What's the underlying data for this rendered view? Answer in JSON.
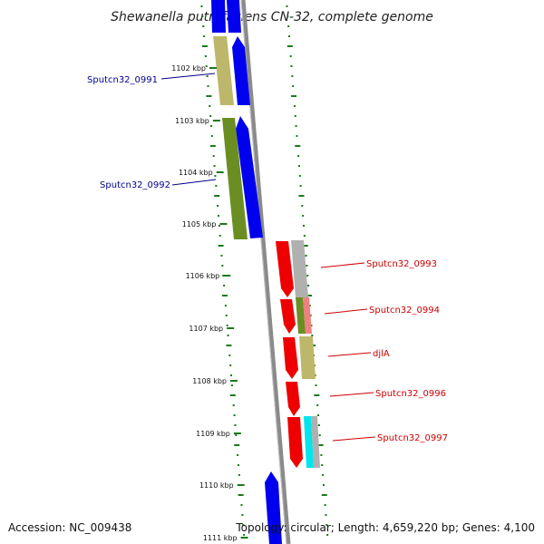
{
  "title": "Shewanella putrefaciens CN-32, complete genome",
  "accession": "Accession: NC_009438",
  "topology": "Topology: circular; Length: 4,659,220 bp; Genes: 4,100",
  "ticks": [
    {
      "label": "1102 kbp"
    },
    {
      "label": "1103 kbp"
    },
    {
      "label": "1104 kbp"
    },
    {
      "label": "1105 kbp"
    },
    {
      "label": "1106 kbp"
    },
    {
      "label": "1107 kbp"
    },
    {
      "label": "1108 kbp"
    },
    {
      "label": "1109 kbp"
    },
    {
      "label": "1110 kbp"
    },
    {
      "label": "1111 kbp"
    }
  ],
  "gene_labels": [
    {
      "text": "Sputcn32_0991",
      "strand": "reverse"
    },
    {
      "text": "Sputcn32_0992",
      "strand": "reverse"
    },
    {
      "text": "Sputcn32_0993",
      "strand": "forward"
    },
    {
      "text": "Sputcn32_0994",
      "strand": "forward"
    },
    {
      "text": "djlA",
      "strand": "forward"
    },
    {
      "text": "Sputcn32_0996",
      "strand": "forward"
    },
    {
      "text": "Sputcn32_0997",
      "strand": "forward"
    }
  ],
  "colors": {
    "reverse_strand": "#0000ee",
    "forward_strand": "#ee0000",
    "reverse_label": "#00008b",
    "forward_label": "#cc0000",
    "backbone": "#808080",
    "gc_ticks": "#1a7a1a",
    "cog_khaki": "#bdb76b",
    "cog_olive": "#6b8e23",
    "cog_grey": "#b0b0b0",
    "cog_salmon": "#f08080",
    "cog_cyan": "#00e5ee"
  }
}
